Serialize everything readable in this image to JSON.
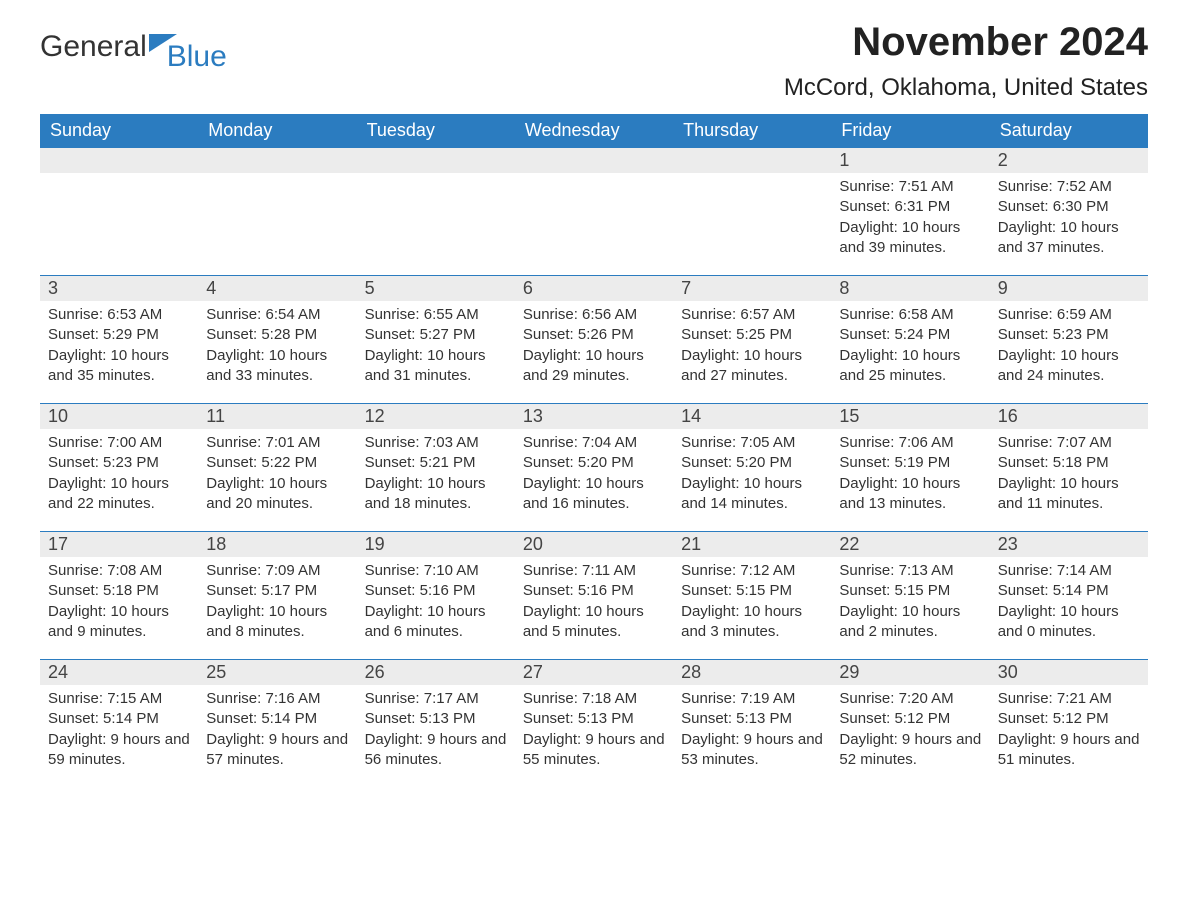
{
  "logo": {
    "part1": "General",
    "part2": "Blue"
  },
  "title": "November 2024",
  "location": "McCord, Oklahoma, United States",
  "colors": {
    "header_bg": "#2b7cc0",
    "header_text": "#ffffff",
    "daynum_bg": "#ececec",
    "border": "#2b7cc0",
    "text": "#333333"
  },
  "days_of_week": [
    "Sunday",
    "Monday",
    "Tuesday",
    "Wednesday",
    "Thursday",
    "Friday",
    "Saturday"
  ],
  "weeks": [
    [
      null,
      null,
      null,
      null,
      null,
      {
        "n": "1",
        "sunrise": "Sunrise: 7:51 AM",
        "sunset": "Sunset: 6:31 PM",
        "daylight": "Daylight: 10 hours and 39 minutes."
      },
      {
        "n": "2",
        "sunrise": "Sunrise: 7:52 AM",
        "sunset": "Sunset: 6:30 PM",
        "daylight": "Daylight: 10 hours and 37 minutes."
      }
    ],
    [
      {
        "n": "3",
        "sunrise": "Sunrise: 6:53 AM",
        "sunset": "Sunset: 5:29 PM",
        "daylight": "Daylight: 10 hours and 35 minutes."
      },
      {
        "n": "4",
        "sunrise": "Sunrise: 6:54 AM",
        "sunset": "Sunset: 5:28 PM",
        "daylight": "Daylight: 10 hours and 33 minutes."
      },
      {
        "n": "5",
        "sunrise": "Sunrise: 6:55 AM",
        "sunset": "Sunset: 5:27 PM",
        "daylight": "Daylight: 10 hours and 31 minutes."
      },
      {
        "n": "6",
        "sunrise": "Sunrise: 6:56 AM",
        "sunset": "Sunset: 5:26 PM",
        "daylight": "Daylight: 10 hours and 29 minutes."
      },
      {
        "n": "7",
        "sunrise": "Sunrise: 6:57 AM",
        "sunset": "Sunset: 5:25 PM",
        "daylight": "Daylight: 10 hours and 27 minutes."
      },
      {
        "n": "8",
        "sunrise": "Sunrise: 6:58 AM",
        "sunset": "Sunset: 5:24 PM",
        "daylight": "Daylight: 10 hours and 25 minutes."
      },
      {
        "n": "9",
        "sunrise": "Sunrise: 6:59 AM",
        "sunset": "Sunset: 5:23 PM",
        "daylight": "Daylight: 10 hours and 24 minutes."
      }
    ],
    [
      {
        "n": "10",
        "sunrise": "Sunrise: 7:00 AM",
        "sunset": "Sunset: 5:23 PM",
        "daylight": "Daylight: 10 hours and 22 minutes."
      },
      {
        "n": "11",
        "sunrise": "Sunrise: 7:01 AM",
        "sunset": "Sunset: 5:22 PM",
        "daylight": "Daylight: 10 hours and 20 minutes."
      },
      {
        "n": "12",
        "sunrise": "Sunrise: 7:03 AM",
        "sunset": "Sunset: 5:21 PM",
        "daylight": "Daylight: 10 hours and 18 minutes."
      },
      {
        "n": "13",
        "sunrise": "Sunrise: 7:04 AM",
        "sunset": "Sunset: 5:20 PM",
        "daylight": "Daylight: 10 hours and 16 minutes."
      },
      {
        "n": "14",
        "sunrise": "Sunrise: 7:05 AM",
        "sunset": "Sunset: 5:20 PM",
        "daylight": "Daylight: 10 hours and 14 minutes."
      },
      {
        "n": "15",
        "sunrise": "Sunrise: 7:06 AM",
        "sunset": "Sunset: 5:19 PM",
        "daylight": "Daylight: 10 hours and 13 minutes."
      },
      {
        "n": "16",
        "sunrise": "Sunrise: 7:07 AM",
        "sunset": "Sunset: 5:18 PM",
        "daylight": "Daylight: 10 hours and 11 minutes."
      }
    ],
    [
      {
        "n": "17",
        "sunrise": "Sunrise: 7:08 AM",
        "sunset": "Sunset: 5:18 PM",
        "daylight": "Daylight: 10 hours and 9 minutes."
      },
      {
        "n": "18",
        "sunrise": "Sunrise: 7:09 AM",
        "sunset": "Sunset: 5:17 PM",
        "daylight": "Daylight: 10 hours and 8 minutes."
      },
      {
        "n": "19",
        "sunrise": "Sunrise: 7:10 AM",
        "sunset": "Sunset: 5:16 PM",
        "daylight": "Daylight: 10 hours and 6 minutes."
      },
      {
        "n": "20",
        "sunrise": "Sunrise: 7:11 AM",
        "sunset": "Sunset: 5:16 PM",
        "daylight": "Daylight: 10 hours and 5 minutes."
      },
      {
        "n": "21",
        "sunrise": "Sunrise: 7:12 AM",
        "sunset": "Sunset: 5:15 PM",
        "daylight": "Daylight: 10 hours and 3 minutes."
      },
      {
        "n": "22",
        "sunrise": "Sunrise: 7:13 AM",
        "sunset": "Sunset: 5:15 PM",
        "daylight": "Daylight: 10 hours and 2 minutes."
      },
      {
        "n": "23",
        "sunrise": "Sunrise: 7:14 AM",
        "sunset": "Sunset: 5:14 PM",
        "daylight": "Daylight: 10 hours and 0 minutes."
      }
    ],
    [
      {
        "n": "24",
        "sunrise": "Sunrise: 7:15 AM",
        "sunset": "Sunset: 5:14 PM",
        "daylight": "Daylight: 9 hours and 59 minutes."
      },
      {
        "n": "25",
        "sunrise": "Sunrise: 7:16 AM",
        "sunset": "Sunset: 5:14 PM",
        "daylight": "Daylight: 9 hours and 57 minutes."
      },
      {
        "n": "26",
        "sunrise": "Sunrise: 7:17 AM",
        "sunset": "Sunset: 5:13 PM",
        "daylight": "Daylight: 9 hours and 56 minutes."
      },
      {
        "n": "27",
        "sunrise": "Sunrise: 7:18 AM",
        "sunset": "Sunset: 5:13 PM",
        "daylight": "Daylight: 9 hours and 55 minutes."
      },
      {
        "n": "28",
        "sunrise": "Sunrise: 7:19 AM",
        "sunset": "Sunset: 5:13 PM",
        "daylight": "Daylight: 9 hours and 53 minutes."
      },
      {
        "n": "29",
        "sunrise": "Sunrise: 7:20 AM",
        "sunset": "Sunset: 5:12 PM",
        "daylight": "Daylight: 9 hours and 52 minutes."
      },
      {
        "n": "30",
        "sunrise": "Sunrise: 7:21 AM",
        "sunset": "Sunset: 5:12 PM",
        "daylight": "Daylight: 9 hours and 51 minutes."
      }
    ]
  ]
}
